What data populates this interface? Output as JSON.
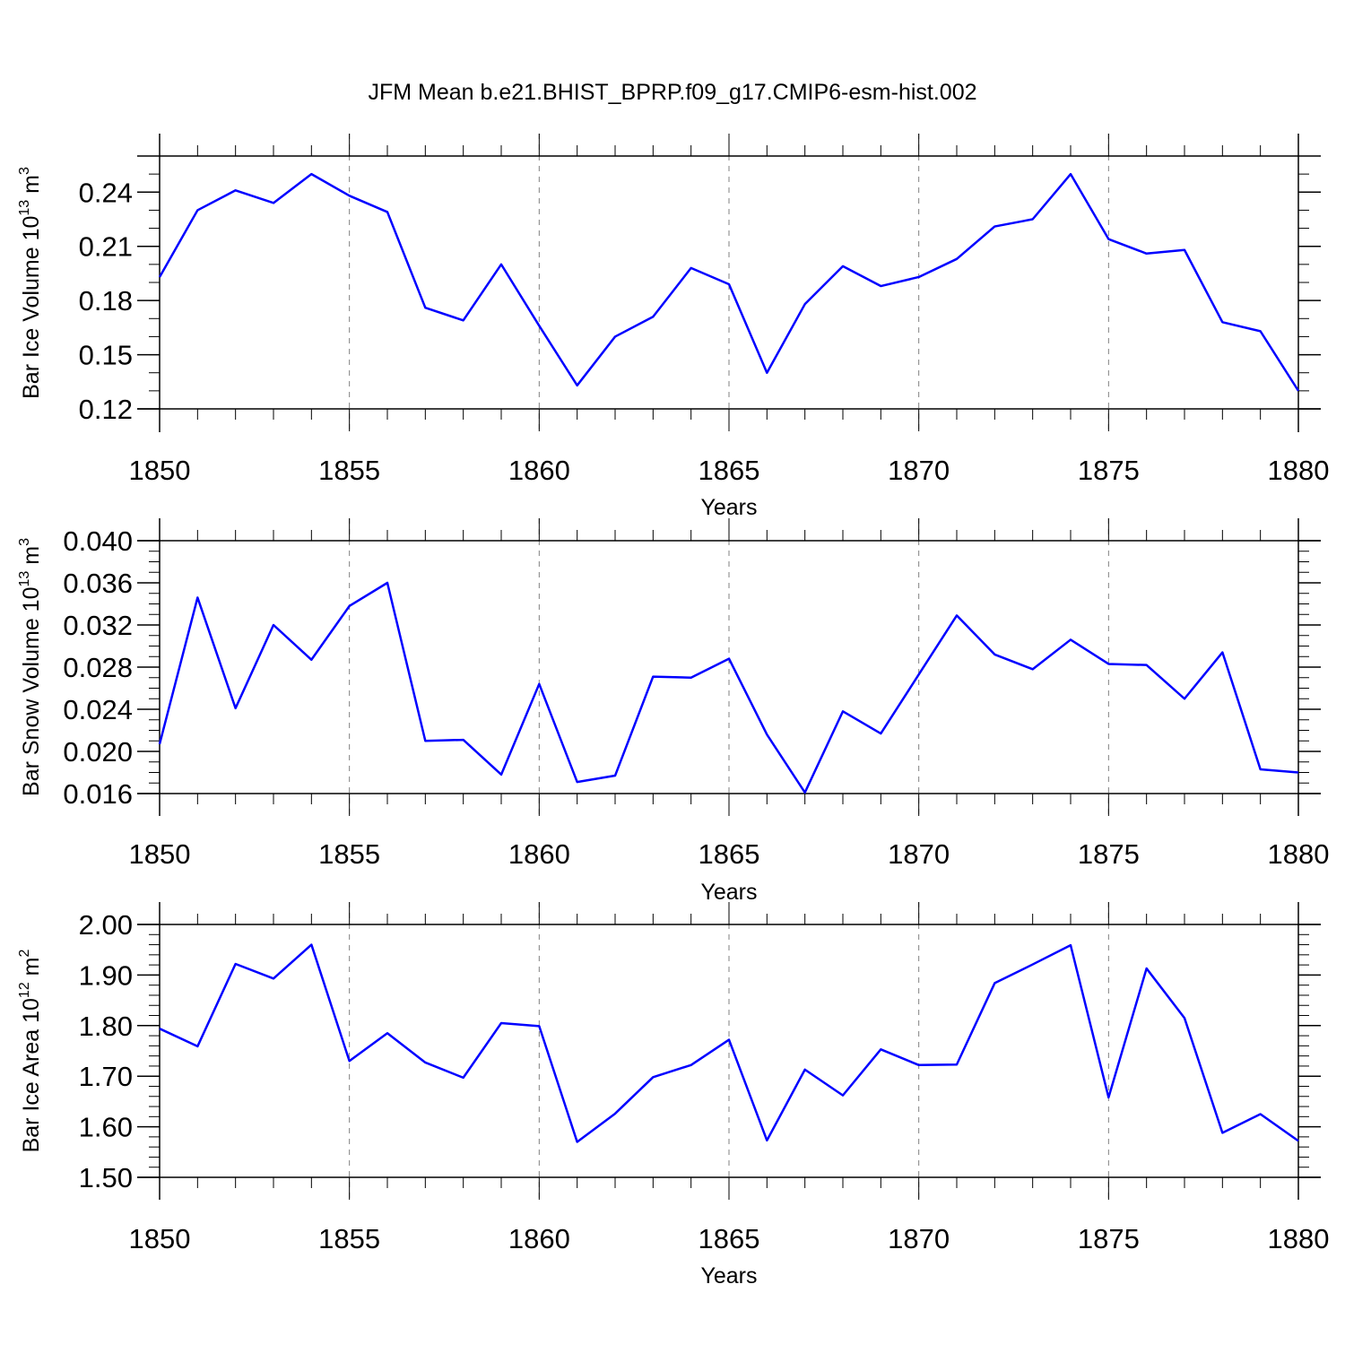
{
  "title": "JFM Mean b.e21.BHIST_BPRP.f09_g17.CMIP6-esm-hist.002",
  "colors": {
    "series": "#0000ff",
    "axes": "#000000",
    "grid": "#808080"
  },
  "chart_data": [
    {
      "type": "line",
      "ylabel": {
        "text": "Bar Ice Volume 10",
        "exp": "13",
        "unit": "m",
        "unit_exp": "3"
      },
      "xlabel": "Years",
      "xlim": [
        1850,
        1880
      ],
      "ylim": [
        0.12,
        0.26
      ],
      "x_ticks": [
        "1850",
        "1855",
        "1860",
        "1865",
        "1870",
        "1875",
        "1880"
      ],
      "y_ticks": [
        "0.12",
        "0.15",
        "0.18",
        "0.21",
        "0.24"
      ],
      "y_tick_values": [
        0.12,
        0.15,
        0.18,
        0.21,
        0.24
      ],
      "y_minor_step": 0.01,
      "x": [
        1850,
        1851,
        1852,
        1853,
        1854,
        1855,
        1856,
        1857,
        1858,
        1859,
        1860,
        1861,
        1862,
        1863,
        1864,
        1865,
        1866,
        1867,
        1868,
        1869,
        1870,
        1871,
        1872,
        1873,
        1874,
        1875,
        1876,
        1877,
        1878,
        1879,
        1880
      ],
      "values": [
        0.193,
        0.23,
        0.241,
        0.234,
        0.25,
        0.238,
        0.229,
        0.176,
        0.169,
        0.2,
        0.166,
        0.133,
        0.16,
        0.171,
        0.198,
        0.189,
        0.14,
        0.178,
        0.199,
        0.188,
        0.193,
        0.203,
        0.221,
        0.225,
        0.25,
        0.214,
        0.206,
        0.208,
        0.168,
        0.163,
        0.13
      ],
      "grid": "vertical-dashed"
    },
    {
      "type": "line",
      "ylabel": {
        "text": "Bar Snow Volume 10",
        "exp": "13",
        "unit": "m",
        "unit_exp": "3"
      },
      "xlabel": "Years",
      "xlim": [
        1850,
        1880
      ],
      "ylim": [
        0.016,
        0.04
      ],
      "x_ticks": [
        "1850",
        "1855",
        "1860",
        "1865",
        "1870",
        "1875",
        "1880"
      ],
      "y_ticks": [
        "0.016",
        "0.020",
        "0.024",
        "0.028",
        "0.032",
        "0.036",
        "0.040"
      ],
      "y_tick_values": [
        0.016,
        0.02,
        0.024,
        0.028,
        0.032,
        0.036,
        0.04
      ],
      "y_minor_step": 0.001,
      "x": [
        1850,
        1851,
        1852,
        1853,
        1854,
        1855,
        1856,
        1857,
        1858,
        1859,
        1860,
        1861,
        1862,
        1863,
        1864,
        1865,
        1866,
        1867,
        1868,
        1869,
        1870,
        1871,
        1872,
        1873,
        1874,
        1875,
        1876,
        1877,
        1878,
        1879,
        1880
      ],
      "values": [
        0.0207,
        0.0346,
        0.0241,
        0.032,
        0.0287,
        0.0338,
        0.036,
        0.021,
        0.0211,
        0.0178,
        0.0264,
        0.0171,
        0.0177,
        0.0271,
        0.027,
        0.0288,
        0.0216,
        0.0161,
        0.0238,
        0.0217,
        0.0273,
        0.0329,
        0.0292,
        0.0278,
        0.0306,
        0.0283,
        0.0282,
        0.025,
        0.0294,
        0.0183,
        0.018
      ],
      "grid": "vertical-dashed"
    },
    {
      "type": "line",
      "ylabel": {
        "text": "Bar Ice Area 10",
        "exp": "12",
        "unit": "m",
        "unit_exp": "2"
      },
      "xlabel": "Years",
      "xlim": [
        1850,
        1880
      ],
      "ylim": [
        1.5,
        2.0
      ],
      "x_ticks": [
        "1850",
        "1855",
        "1860",
        "1865",
        "1870",
        "1875",
        "1880"
      ],
      "y_ticks": [
        "1.50",
        "1.60",
        "1.70",
        "1.80",
        "1.90",
        "2.00"
      ],
      "y_tick_values": [
        1.5,
        1.6,
        1.7,
        1.8,
        1.9,
        2.0
      ],
      "y_minor_step": 0.02,
      "x": [
        1850,
        1851,
        1852,
        1853,
        1854,
        1855,
        1856,
        1857,
        1858,
        1859,
        1860,
        1861,
        1862,
        1863,
        1864,
        1865,
        1866,
        1867,
        1868,
        1869,
        1870,
        1871,
        1872,
        1873,
        1874,
        1875,
        1876,
        1877,
        1878,
        1879,
        1880
      ],
      "values": [
        1.794,
        1.759,
        1.922,
        1.893,
        1.96,
        1.73,
        1.785,
        1.727,
        1.697,
        1.805,
        1.799,
        1.57,
        1.626,
        1.698,
        1.722,
        1.772,
        1.573,
        1.713,
        1.662,
        1.753,
        1.722,
        1.723,
        1.884,
        1.921,
        1.959,
        1.658,
        1.913,
        1.815,
        1.588,
        1.625,
        1.572
      ],
      "grid": "vertical-dashed"
    }
  ]
}
